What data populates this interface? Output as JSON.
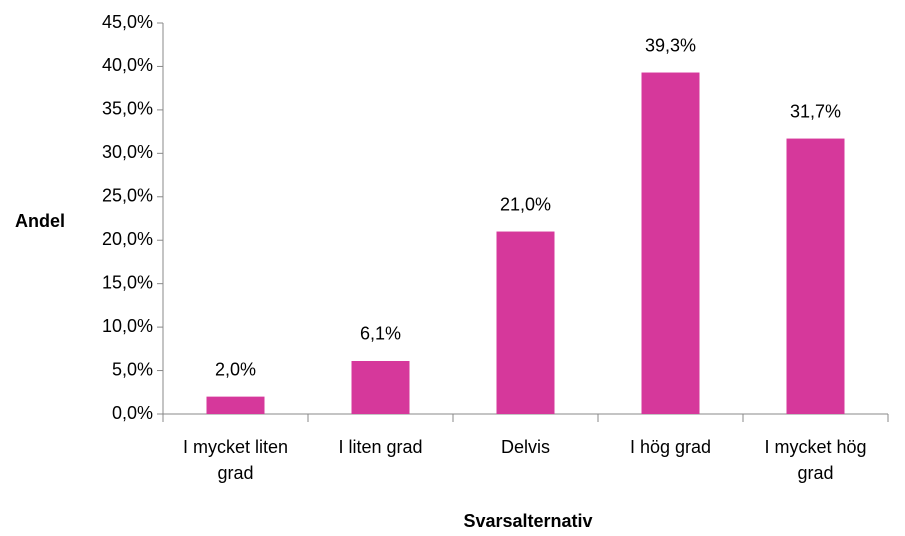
{
  "chart_data": {
    "type": "bar",
    "xlabel": "Svarsalternativ",
    "ylabel": "Andel",
    "categories": [
      "I mycket liten grad",
      "I liten grad",
      "Delvis",
      "I hög grad",
      "I mycket hög grad"
    ],
    "values": [
      2.0,
      6.1,
      21.0,
      39.3,
      31.7
    ],
    "value_labels": [
      "2,0%",
      "6,1%",
      "21,0%",
      "39,3%",
      "31,7%"
    ],
    "color": "#d6389b",
    "ylim": [
      0,
      45
    ],
    "yticks": [
      {
        "value": 0,
        "label": "0,0%"
      },
      {
        "value": 5,
        "label": "5,0%"
      },
      {
        "value": 10,
        "label": "10,0%"
      },
      {
        "value": 15,
        "label": "15,0%"
      },
      {
        "value": 20,
        "label": "20,0%"
      },
      {
        "value": 25,
        "label": "25,0%"
      },
      {
        "value": 30,
        "label": "30,0%"
      },
      {
        "value": 35,
        "label": "35,0%"
      },
      {
        "value": 40,
        "label": "40,0%"
      },
      {
        "value": 45,
        "label": "45,0%"
      }
    ],
    "grid": false
  }
}
